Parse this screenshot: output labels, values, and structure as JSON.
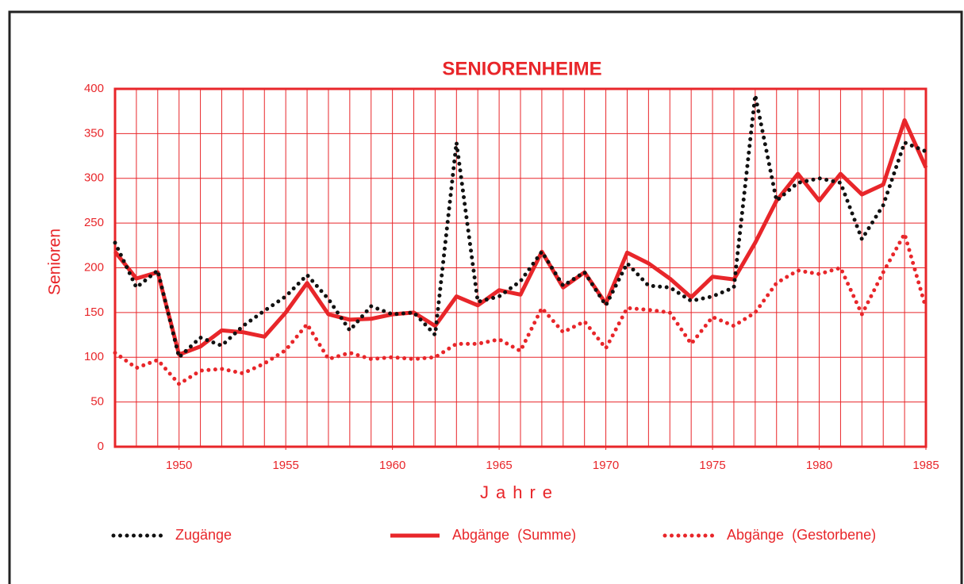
{
  "chart_data": {
    "type": "line",
    "title": "SENIORENHEIME",
    "xlabel": "Jahre",
    "ylabel": "Senioren",
    "x": [
      1947,
      1948,
      1949,
      1950,
      1951,
      1952,
      1953,
      1954,
      1955,
      1956,
      1957,
      1958,
      1959,
      1960,
      1961,
      1962,
      1963,
      1964,
      1965,
      1966,
      1967,
      1968,
      1969,
      1970,
      1971,
      1972,
      1973,
      1974,
      1975,
      1976,
      1977,
      1978,
      1979,
      1980,
      1981,
      1982,
      1983,
      1984,
      1985
    ],
    "series": [
      {
        "name": "Zugänge",
        "color": "#111111",
        "style": "dotted",
        "values": [
          228,
          178,
          197,
          100,
          122,
          113,
          135,
          152,
          168,
          192,
          165,
          130,
          157,
          148,
          150,
          125,
          340,
          162,
          168,
          185,
          218,
          180,
          195,
          158,
          205,
          180,
          178,
          163,
          168,
          178,
          393,
          275,
          295,
          300,
          295,
          232,
          270,
          340,
          330
        ]
      },
      {
        "name": "Abgänge  (Summe)",
        "color": "#e8262a",
        "style": "solid",
        "values": [
          218,
          188,
          195,
          103,
          112,
          130,
          128,
          123,
          150,
          183,
          148,
          142,
          143,
          148,
          150,
          135,
          168,
          158,
          175,
          170,
          218,
          178,
          195,
          160,
          217,
          205,
          188,
          167,
          190,
          187,
          228,
          275,
          305,
          275,
          305,
          282,
          293,
          365,
          312
        ]
      },
      {
        "name": "Abgänge  (Gestorbene)",
        "color": "#e8262a",
        "style": "dotted",
        "values": [
          105,
          88,
          97,
          70,
          85,
          87,
          82,
          93,
          108,
          137,
          98,
          105,
          98,
          100,
          98,
          100,
          115,
          115,
          120,
          107,
          155,
          128,
          140,
          110,
          155,
          153,
          150,
          115,
          145,
          135,
          150,
          183,
          197,
          193,
          200,
          148,
          195,
          238,
          155
        ]
      }
    ],
    "xlim": [
      1947,
      1985
    ],
    "xticks": [
      1950,
      1955,
      1960,
      1965,
      1970,
      1975,
      1980,
      1985
    ],
    "ylim": [
      0,
      400
    ],
    "yticks": [
      0,
      50,
      100,
      150,
      200,
      250,
      300,
      350,
      400
    ],
    "grid": true,
    "legend": "bottom"
  }
}
